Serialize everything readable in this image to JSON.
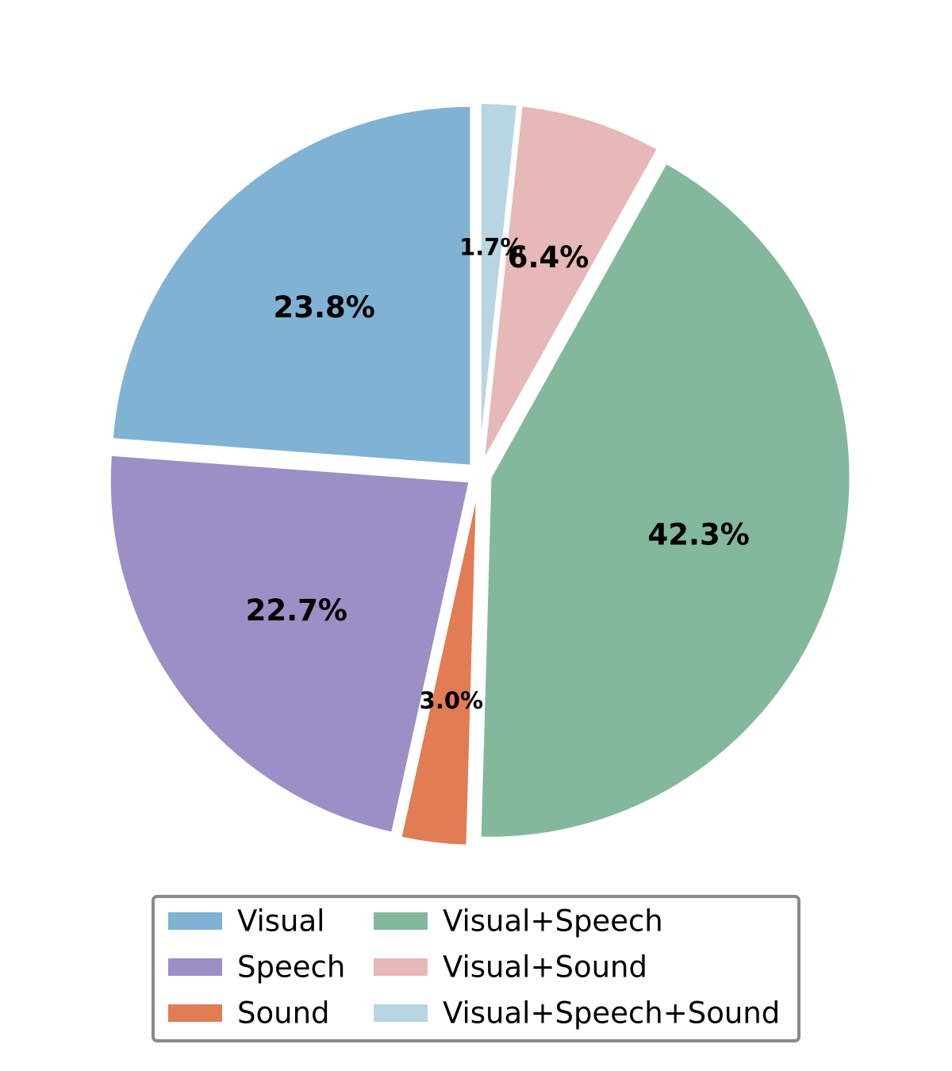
{
  "chart_data": {
    "type": "pie",
    "start_angle": "top (12 o'clock), counter-clockwise",
    "exploded": "all slices slightly separated",
    "legend_placement": "bottom-center, 2 columns",
    "slices": [
      {
        "label": "Visual",
        "value": 23.8,
        "display": "23.8%",
        "color": "#7fb2d3"
      },
      {
        "label": "Speech",
        "value": 22.7,
        "display": "22.7%",
        "color": "#9b8fc5"
      },
      {
        "label": "Sound",
        "value": 3.0,
        "display": "3.0%",
        "color": "#e17c54"
      },
      {
        "label": "Visual+Speech",
        "value": 42.3,
        "display": "42.3%",
        "color": "#84b89d"
      },
      {
        "label": "Visual+Sound",
        "value": 6.4,
        "display": "6.4%",
        "color": "#e6b8b8"
      },
      {
        "label": "Visual+Speech+Sound",
        "value": 1.7,
        "display": "1.7%",
        "color": "#b8d5e3"
      }
    ]
  }
}
